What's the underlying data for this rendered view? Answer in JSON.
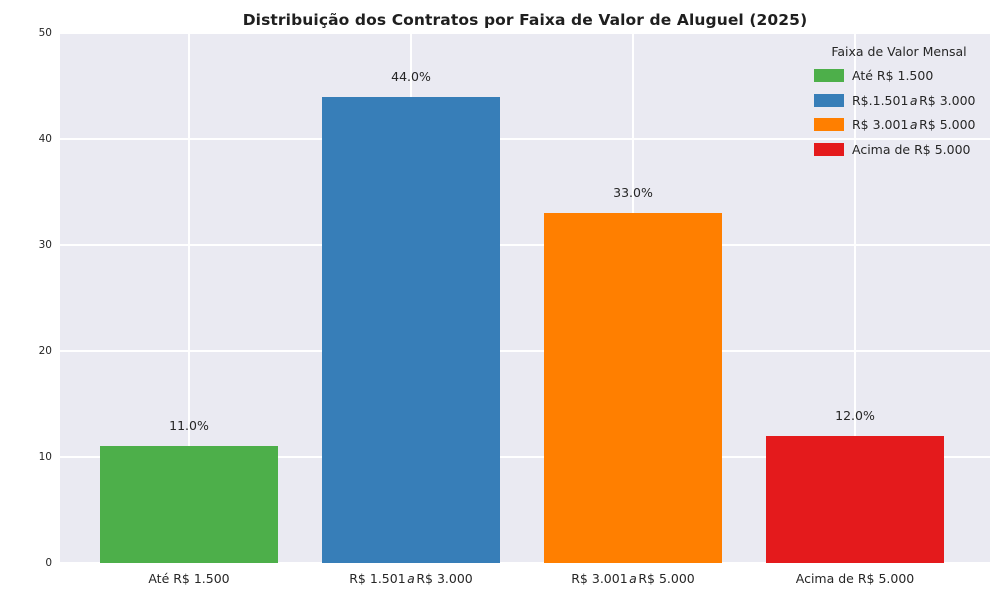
{
  "chart_data": {
    "type": "bar",
    "title": "Distribuição dos Contratos por Faixa de Valor de Aluguel (2025)",
    "categories": [
      "Até R$ 1.500",
      "R$ 1.501 a R$ 3.000",
      "R$ 3.001 a R$ 5.000",
      "Acima de R$ 5.000"
    ],
    "category_display": [
      [
        {
          "t": "Até R$ 1.500",
          "i": false
        }
      ],
      [
        {
          "t": "R$ 1.501",
          "i": false
        },
        {
          "t": "a",
          "i": true
        },
        {
          "t": "R$ 3.000",
          "i": false
        }
      ],
      [
        {
          "t": "R$ 3.001",
          "i": false
        },
        {
          "t": "a",
          "i": true
        },
        {
          "t": "R$ 5.000",
          "i": false
        }
      ],
      [
        {
          "t": "Acima de R$ 5.000",
          "i": false
        }
      ]
    ],
    "values": [
      11.0,
      44.0,
      33.0,
      12.0
    ],
    "bar_labels": [
      "11.0%",
      "44.0%",
      "33.0%",
      "12.0%"
    ],
    "bar_colors": [
      "#4daf4a",
      "#377eb8",
      "#ff7f00",
      "#e41a1c"
    ],
    "xlabel": "",
    "ylabel": "",
    "ylim": [
      0,
      50
    ],
    "yticks": [
      0,
      10,
      20,
      30,
      40,
      50
    ],
    "grid": true,
    "grid_color": "#ffffff",
    "plot_background": "#eaeaf2",
    "text_color": "#262626",
    "legend": {
      "title": "Faixa de Valor Mensal",
      "position": "upper right",
      "entries": [
        {
          "label": "Até R$ 1.500",
          "display": [
            {
              "t": "Até R$ 1.500",
              "i": false
            }
          ],
          "color": "#4daf4a"
        },
        {
          "label": "R$.1.501 a R$ 3.000",
          "display": [
            {
              "t": "R$.1.501",
              "i": false
            },
            {
              "t": "a",
              "i": true
            },
            {
              "t": "R$ 3.000",
              "i": false
            }
          ],
          "color": "#377eb8"
        },
        {
          "label": "R$ 3.001 a R$ 5.000",
          "display": [
            {
              "t": "R$ 3.001",
              "i": false
            },
            {
              "t": "a",
              "i": true
            },
            {
              "t": "R$ 5.000",
              "i": false
            }
          ],
          "color": "#ff7f00"
        },
        {
          "label": "Acima de R$ 5.000",
          "display": [
            {
              "t": "Acima de R$ 5.000",
              "i": false
            }
          ],
          "color": "#e41a1c"
        }
      ]
    }
  }
}
